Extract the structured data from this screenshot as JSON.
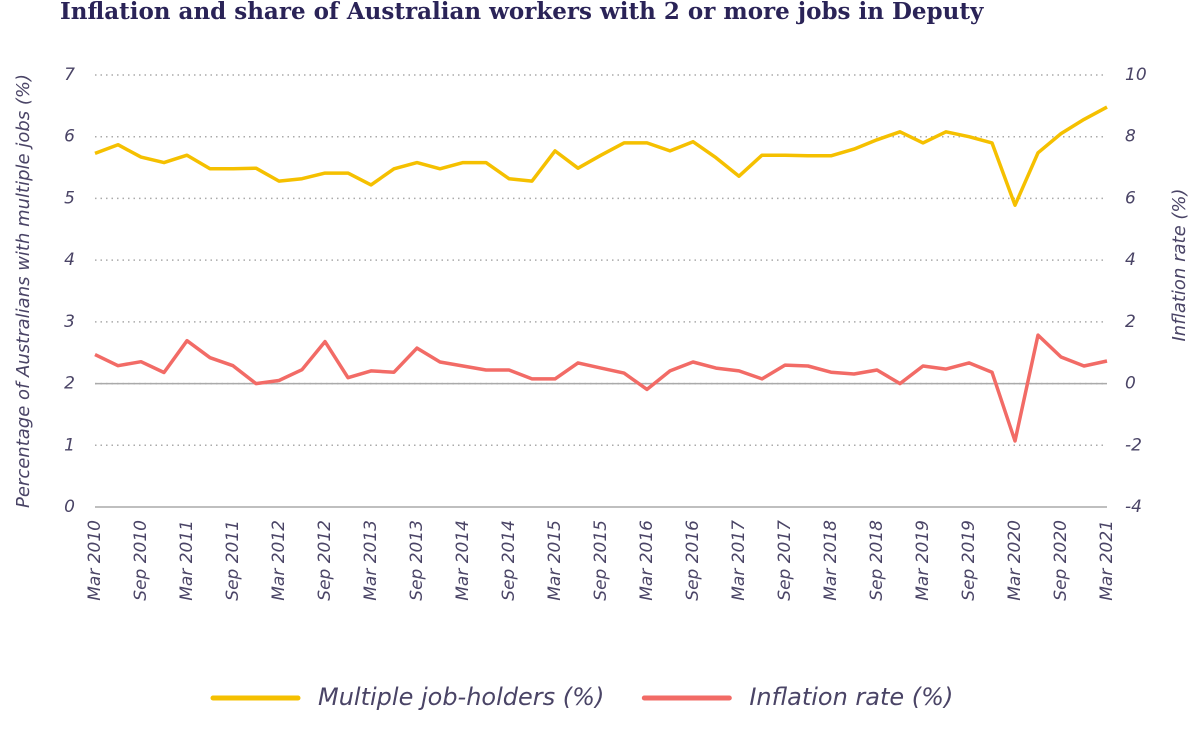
{
  "chart_data": {
    "type": "line",
    "title": "Inflation and share of Australian workers with 2 or more jobs in Deputy",
    "y_label": "Percentage of Australians with multiple jobs (%)",
    "y2_label": "Inflation rate (%)",
    "categories": [
      "Mar 2010",
      null,
      "Sep 2010",
      null,
      "Mar 2011",
      null,
      "Sep 2011",
      null,
      "Mar 2012",
      null,
      "Sep 2012",
      null,
      "Mar 2013",
      null,
      "Sep 2013",
      null,
      "Mar 2014",
      null,
      "Sep 2014",
      null,
      "Mar 2015",
      null,
      "Sep 2015",
      null,
      "Mar 2016",
      null,
      "Sep 2016",
      null,
      "Mar 2017",
      null,
      "Sep 2017",
      null,
      "Mar 2018",
      null,
      "Sep 2018",
      null,
      "Mar 2019",
      null,
      "Sep 2019",
      null,
      "Mar 2020",
      null,
      "Sep 2020",
      null,
      "Mar 2021"
    ],
    "series": [
      {
        "name": "Multiple job-holders (%)",
        "color": "#f5c000",
        "axis": "y",
        "values": [
          5.73,
          5.87,
          5.67,
          5.58,
          5.7,
          5.48,
          5.48,
          5.49,
          5.28,
          5.32,
          5.41,
          5.41,
          5.22,
          5.48,
          5.58,
          5.48,
          5.58,
          5.58,
          5.32,
          5.28,
          5.77,
          5.49,
          5.7,
          5.9,
          5.9,
          5.77,
          5.92,
          5.66,
          5.36,
          5.7,
          5.7,
          5.69,
          5.69,
          5.8,
          5.95,
          6.08,
          5.9,
          6.08,
          6.0,
          5.9,
          4.89,
          5.74,
          6.05,
          6.28,
          6.48
        ]
      },
      {
        "name": "Inflation rate (%)",
        "color": "#f26b66",
        "axis": "y2",
        "values": [
          0.94,
          0.58,
          0.71,
          0.36,
          1.39,
          0.84,
          0.58,
          0.0,
          0.1,
          0.45,
          1.36,
          0.19,
          0.41,
          0.37,
          1.15,
          0.7,
          0.57,
          0.44,
          0.44,
          0.15,
          0.15,
          0.67,
          0.5,
          0.34,
          -0.19,
          0.41,
          0.7,
          0.5,
          0.41,
          0.15,
          0.6,
          0.57,
          0.37,
          0.31,
          0.44,
          0.0,
          0.57,
          0.47,
          0.67,
          0.37,
          -1.86,
          1.57,
          0.86,
          0.57,
          0.73
        ]
      }
    ],
    "ylim": [
      0,
      7
    ],
    "yticks": [
      0,
      1,
      2,
      3,
      4,
      5,
      6,
      7
    ],
    "y2lim": [
      -4,
      10
    ],
    "y2ticks": [
      -4,
      -2,
      0,
      2,
      4,
      6,
      8,
      10
    ],
    "grid": true,
    "legend": "bottom"
  }
}
